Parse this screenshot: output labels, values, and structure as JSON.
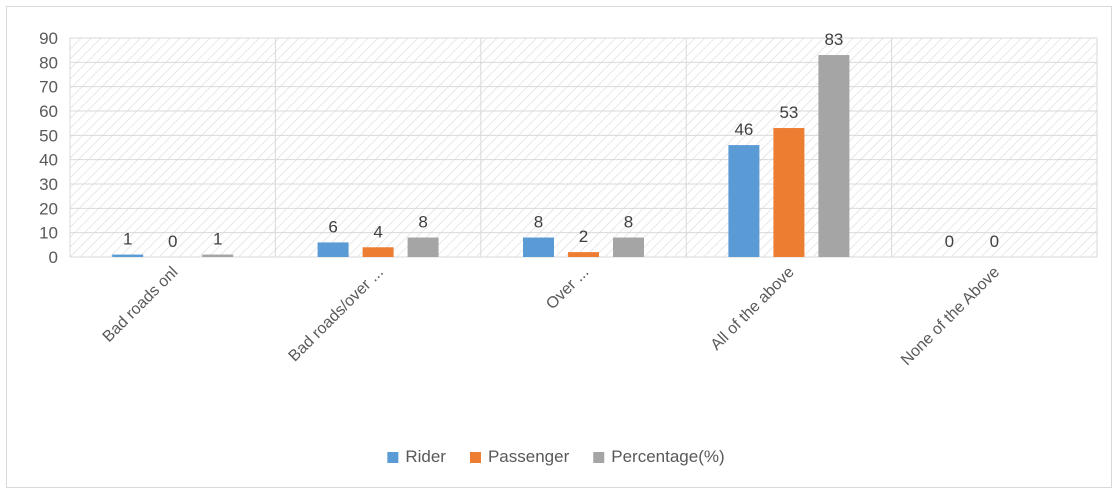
{
  "chart_data": {
    "type": "bar",
    "categories": [
      "Bad roads onl",
      "Bad roads/over ...",
      "Over ...",
      "All of the above",
      "None of the Above"
    ],
    "series": [
      {
        "name": "Rider",
        "color": "#5b9bd5",
        "values": [
          1,
          6,
          8,
          46,
          0
        ]
      },
      {
        "name": "Passenger",
        "color": "#ed7d31",
        "values": [
          0,
          4,
          2,
          53,
          0
        ]
      },
      {
        "name": "Percentage(%)",
        "color": "#a5a5a5",
        "values": [
          1,
          8,
          8,
          83,
          null
        ]
      }
    ],
    "ylim": [
      0,
      90
    ],
    "yticks": [
      0,
      10,
      20,
      30,
      40,
      50,
      60,
      70,
      80,
      90
    ],
    "grid": true,
    "legend_position": "bottom"
  }
}
